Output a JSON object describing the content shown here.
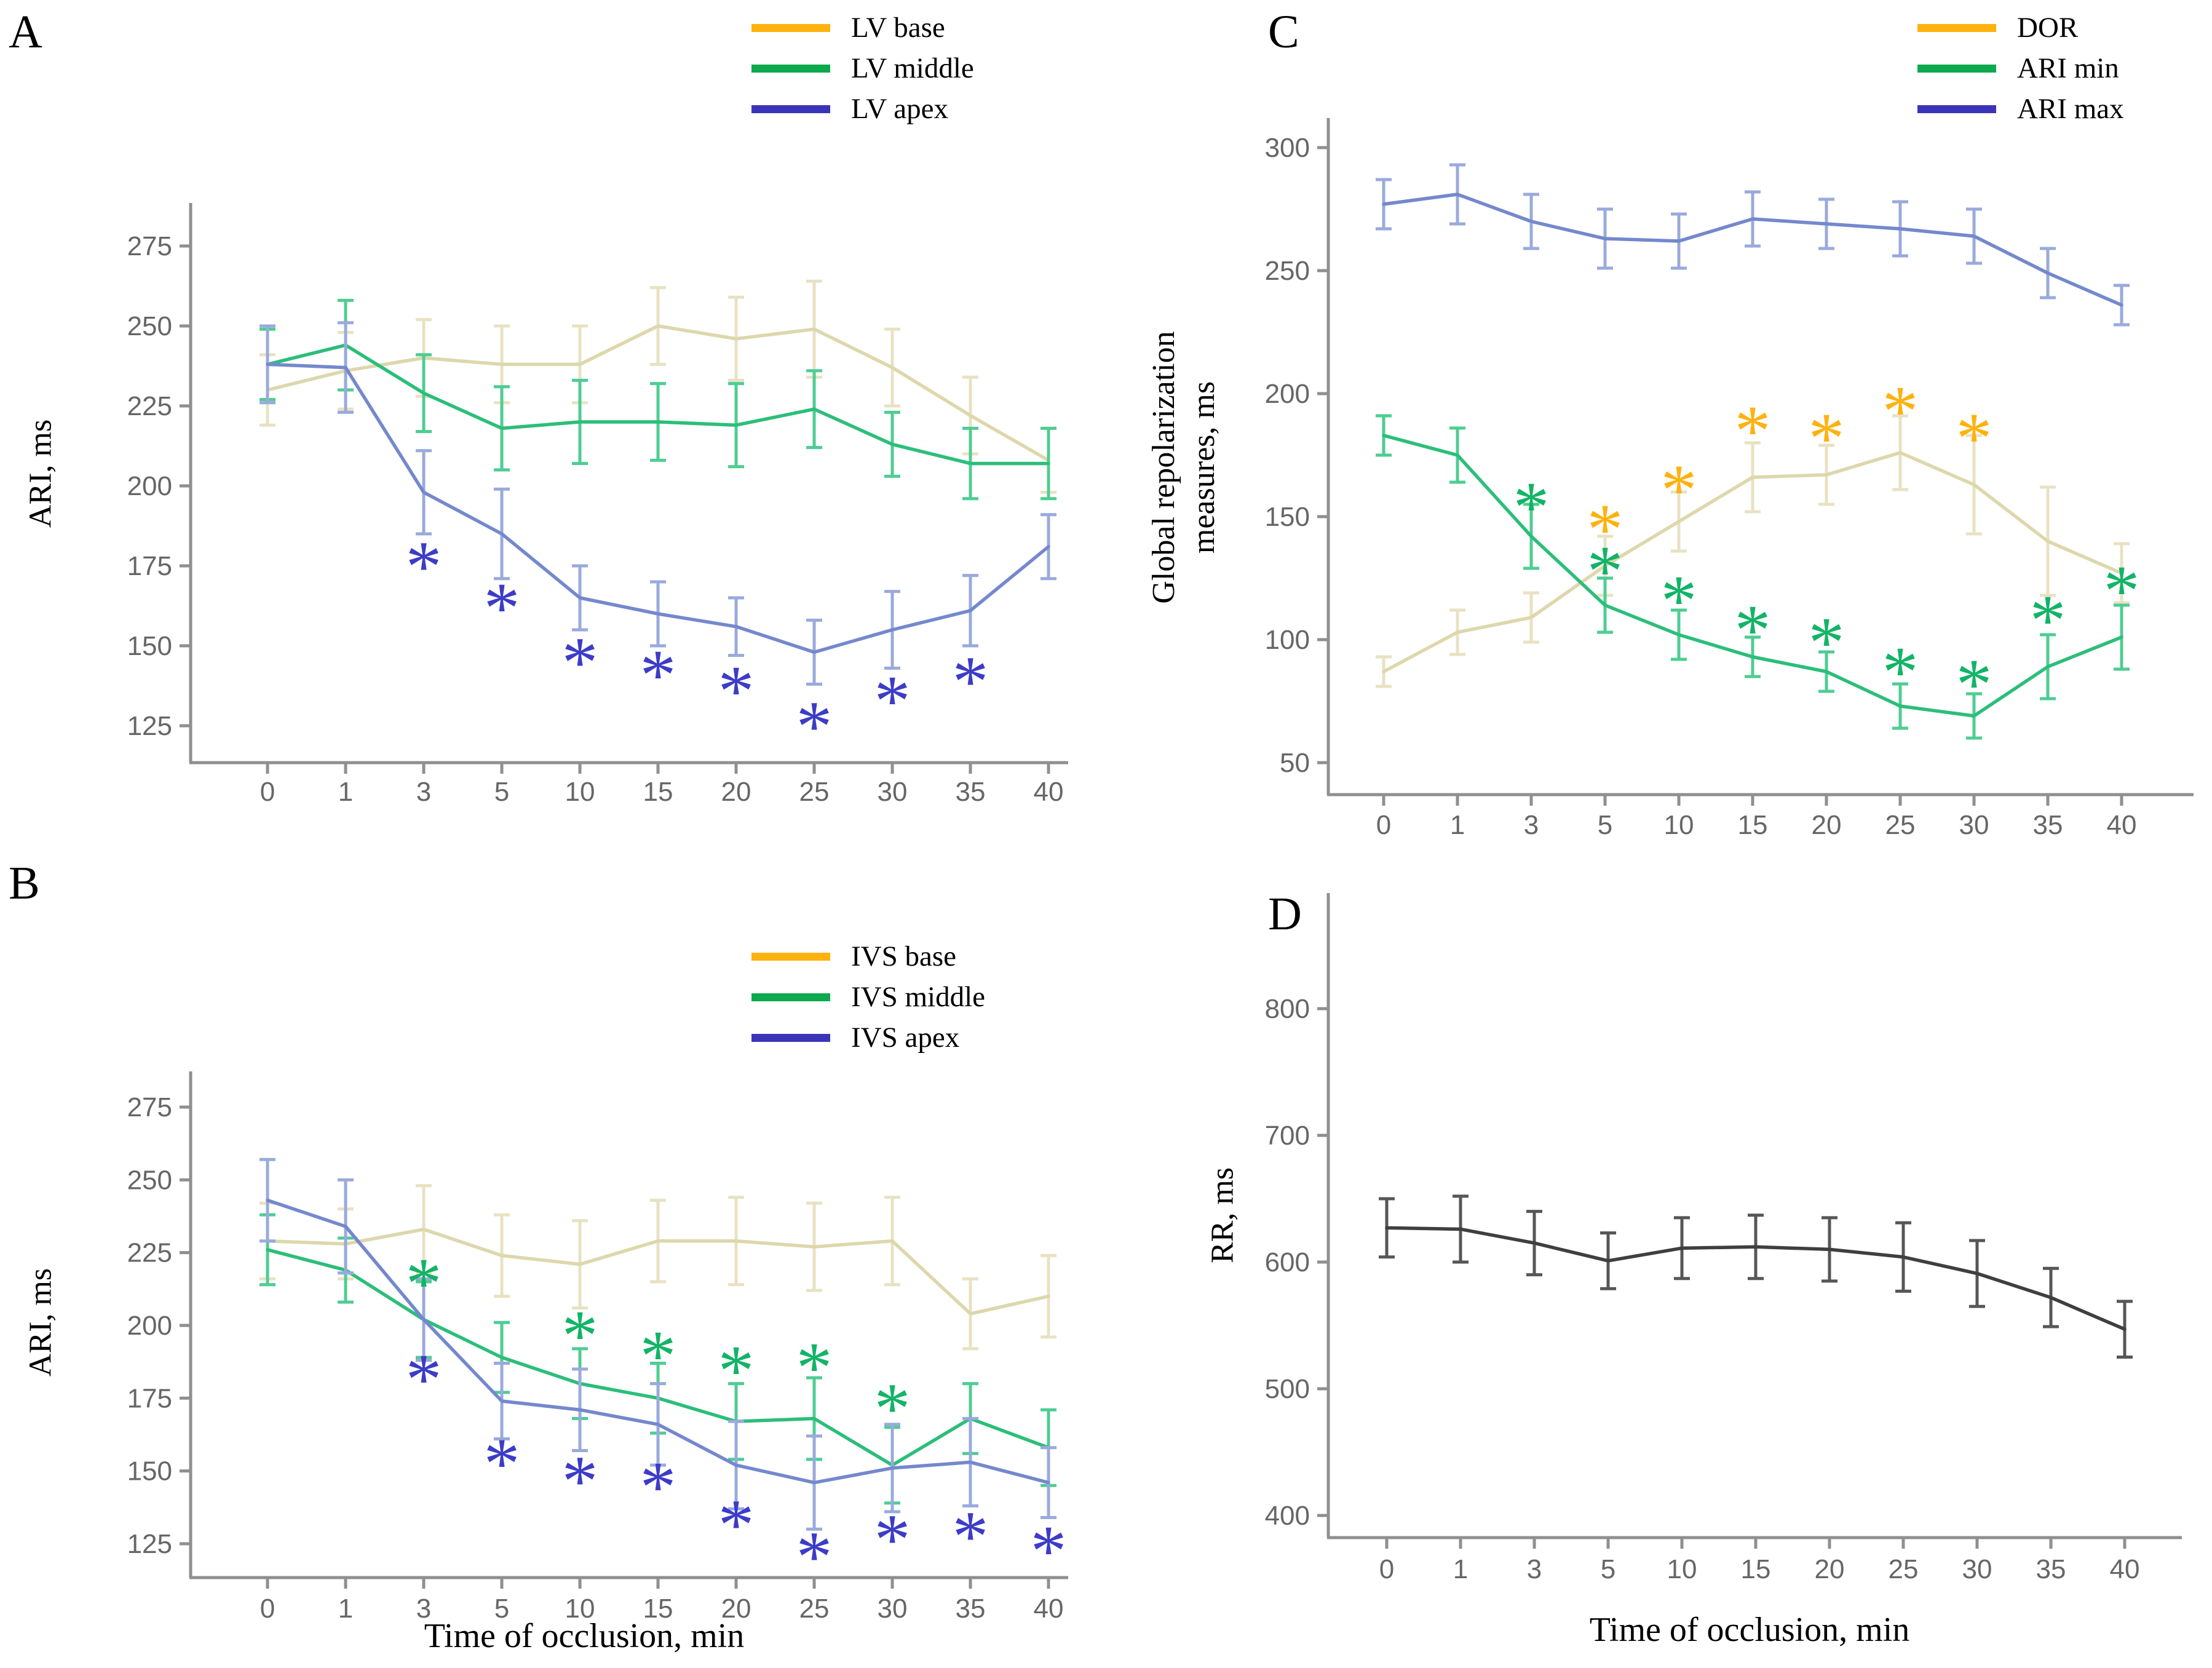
{
  "symbols": {
    "significance": "*"
  },
  "colors": {
    "axis": "#8f8f8f",
    "tick_label": "#666666",
    "background": "#ffffff"
  },
  "chart_data": [
    {
      "panel": "A",
      "type": "line",
      "ylabel": "ARI, ms",
      "xlabel": "",
      "yticks": [
        275,
        250,
        225,
        200,
        175,
        150,
        125
      ],
      "ylim": [
        115,
        285
      ],
      "categories": [
        "0",
        "1",
        "3",
        "5",
        "10",
        "15",
        "20",
        "25",
        "30",
        "35",
        "40"
      ],
      "legend": [
        {
          "label": "LV base",
          "color": "#FFB20F"
        },
        {
          "label": "LV middle",
          "color": "#0CA94D"
        },
        {
          "label": "LV apex",
          "color": "#3A35B8"
        }
      ],
      "series": [
        {
          "name": "LV base",
          "line_color": "#DDD7AC",
          "err_color": "#E8E2C3",
          "values": [
            230,
            236,
            240,
            238,
            238,
            250,
            246,
            249,
            237,
            222,
            208
          ],
          "err": [
            11,
            12,
            12,
            12,
            12,
            12,
            13,
            15,
            12,
            12,
            10
          ]
        },
        {
          "name": "LV middle",
          "line_color": "#2CBE7A",
          "err_color": "#4ECD92",
          "values": [
            238,
            244,
            229,
            218,
            220,
            220,
            219,
            224,
            213,
            207,
            207
          ],
          "err": [
            11,
            14,
            12,
            13,
            13,
            12,
            13,
            12,
            10,
            11,
            11
          ]
        },
        {
          "name": "LV apex",
          "line_color": "#7488CD",
          "err_color": "#9AAADC",
          "values": [
            238,
            237,
            198,
            185,
            165,
            160,
            156,
            148,
            155,
            161,
            181
          ],
          "err": [
            12,
            14,
            13,
            14,
            10,
            10,
            9,
            10,
            12,
            11,
            10
          ]
        }
      ],
      "asterisks": [
        {
          "color": "#3C3CC8",
          "points": [
            [
              2,
              178
            ],
            [
              3,
              165
            ],
            [
              4,
              148
            ],
            [
              5,
              144
            ],
            [
              6,
              139
            ],
            [
              7,
              128
            ],
            [
              8,
              136
            ],
            [
              9,
              142
            ]
          ]
        }
      ]
    },
    {
      "panel": "B",
      "type": "line",
      "ylabel": "ARI, ms",
      "xlabel": "Time of occlusion, min",
      "yticks": [
        275,
        250,
        225,
        200,
        175,
        150,
        125
      ],
      "ylim": [
        115,
        285
      ],
      "categories": [
        "0",
        "1",
        "3",
        "5",
        "10",
        "15",
        "20",
        "25",
        "30",
        "35",
        "40"
      ],
      "legend": [
        {
          "label": "IVS base",
          "color": "#FFB20F"
        },
        {
          "label": "IVS middle",
          "color": "#0CA94D"
        },
        {
          "label": "IVS apex",
          "color": "#3A35B8"
        }
      ],
      "series": [
        {
          "name": "IVS base",
          "line_color": "#DDD7AC",
          "err_color": "#E8E2C3",
          "values": [
            229,
            228,
            233,
            224,
            221,
            229,
            229,
            227,
            229,
            204,
            210
          ],
          "err": [
            13,
            12,
            15,
            14,
            15,
            14,
            15,
            15,
            15,
            12,
            14
          ]
        },
        {
          "name": "IVS middle",
          "line_color": "#2CBE7A",
          "err_color": "#4ECD92",
          "values": [
            226,
            219,
            202,
            189,
            180,
            175,
            167,
            168,
            152,
            168,
            158
          ],
          "err": [
            12,
            11,
            13,
            12,
            12,
            12,
            13,
            14,
            13,
            12,
            13
          ]
        },
        {
          "name": "IVS apex",
          "line_color": "#7488CD",
          "err_color": "#9AAADC",
          "values": [
            243,
            234,
            202,
            174,
            171,
            166,
            152,
            146,
            151,
            153,
            146
          ],
          "err": [
            14,
            16,
            14,
            13,
            14,
            14,
            15,
            16,
            15,
            15,
            12
          ]
        }
      ],
      "asterisks": [
        {
          "color": "#12B467",
          "points": [
            [
              2,
              218
            ],
            [
              4,
              200
            ],
            [
              5,
              193
            ],
            [
              6,
              188
            ],
            [
              7,
              189
            ],
            [
              8,
              175
            ]
          ]
        },
        {
          "color": "#3C3CC8",
          "points": [
            [
              2,
              185
            ],
            [
              3,
              156
            ],
            [
              4,
              150
            ],
            [
              5,
              148
            ],
            [
              6,
              135
            ],
            [
              7,
              124
            ],
            [
              8,
              130
            ],
            [
              9,
              131
            ],
            [
              10,
              126
            ]
          ]
        }
      ]
    },
    {
      "panel": "C",
      "type": "line",
      "ylabel_lines": [
        "Global repolarization",
        "measures, ms"
      ],
      "xlabel": "",
      "yticks": [
        300,
        250,
        200,
        150,
        100,
        50
      ],
      "ylim": [
        40,
        315
      ],
      "categories": [
        "0",
        "1",
        "3",
        "5",
        "10",
        "15",
        "20",
        "25",
        "30",
        "35",
        "40"
      ],
      "legend": [
        {
          "label": "DOR",
          "color": "#FFB20F"
        },
        {
          "label": "ARI min",
          "color": "#0CA94D"
        },
        {
          "label": "ARI max",
          "color": "#3A35B8"
        }
      ],
      "series": [
        {
          "name": "DOR",
          "line_color": "#DDD7AC",
          "err_color": "#E8E2C3",
          "values": [
            87,
            103,
            109,
            130,
            148,
            166,
            167,
            176,
            163,
            140,
            127
          ],
          "err": [
            6,
            9,
            10,
            12,
            12,
            14,
            12,
            15,
            20,
            22,
            12
          ]
        },
        {
          "name": "ARI min",
          "line_color": "#2CBE7A",
          "err_color": "#4ECD92",
          "values": [
            183,
            175,
            142,
            114,
            102,
            93,
            87,
            73,
            69,
            89,
            101
          ],
          "err": [
            8,
            11,
            13,
            11,
            10,
            8,
            8,
            9,
            9,
            13,
            13
          ]
        },
        {
          "name": "ARI max",
          "line_color": "#7488CD",
          "err_color": "#9AAADC",
          "values": [
            277,
            281,
            270,
            263,
            262,
            271,
            269,
            267,
            264,
            249,
            236
          ],
          "err": [
            10,
            12,
            11,
            12,
            11,
            11,
            10,
            11,
            11,
            10,
            8
          ]
        }
      ],
      "asterisks": [
        {
          "color": "#FFB20F",
          "points": [
            [
              3,
              149
            ],
            [
              4,
              165
            ],
            [
              5,
              189
            ],
            [
              6,
              186
            ],
            [
              7,
              197
            ],
            [
              8,
              186
            ]
          ]
        },
        {
          "color": "#12B467",
          "points": [
            [
              2,
              158
            ],
            [
              3,
              132
            ],
            [
              4,
              120
            ],
            [
              5,
              108
            ],
            [
              6,
              103
            ],
            [
              7,
              91
            ],
            [
              8,
              86
            ],
            [
              9,
              112
            ],
            [
              10,
              124
            ]
          ]
        }
      ]
    },
    {
      "panel": "D",
      "type": "line",
      "ylabel": "RR, ms",
      "xlabel": "Time of occlusion, min",
      "yticks": [
        800,
        700,
        600,
        500,
        400
      ],
      "ylim": [
        370,
        860
      ],
      "categories": [
        "0",
        "1",
        "3",
        "5",
        "10",
        "15",
        "20",
        "25",
        "30",
        "35",
        "40"
      ],
      "legend": [],
      "series": [
        {
          "name": "RR",
          "line_color": "#3F3F3F",
          "err_color": "#565656",
          "values": [
            627,
            626,
            615,
            601,
            611,
            612,
            610,
            604,
            591,
            572,
            547
          ],
          "err": [
            23,
            26,
            25,
            22,
            24,
            25,
            25,
            27,
            26,
            23,
            22
          ]
        }
      ],
      "asterisks": []
    }
  ]
}
